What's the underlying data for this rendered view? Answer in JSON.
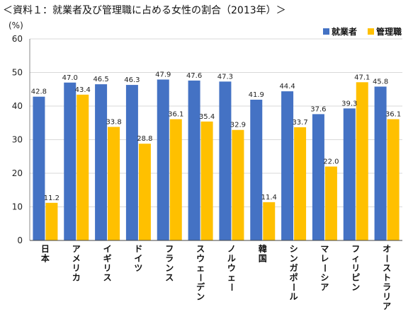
{
  "title": "＜資料１：就業者及び管理職に占める女性の割合（2013年）＞",
  "chart_data": {
    "type": "bar",
    "ylabel": "(%)",
    "ylim": [
      0,
      60
    ],
    "yticks": [
      0,
      10,
      20,
      30,
      40,
      50,
      60
    ],
    "grid": true,
    "legend": "top-right",
    "categories": [
      "日本",
      "アメリカ",
      "イギリス",
      "ドイツ",
      "フランス",
      "スウェーデン",
      "ノルウェー",
      "韓国",
      "シンガポール",
      "マレーシア",
      "フィリピン",
      "オーストラリア"
    ],
    "series": [
      {
        "name": "就業者",
        "color": "#4472c4",
        "values": [
          42.8,
          47.0,
          46.5,
          46.3,
          47.9,
          47.6,
          47.3,
          41.9,
          44.4,
          37.6,
          39.3,
          45.8
        ]
      },
      {
        "name": "管理職",
        "color": "#ffc000",
        "values": [
          11.2,
          43.4,
          33.8,
          28.8,
          36.1,
          35.4,
          32.9,
          11.4,
          33.7,
          22.0,
          47.1,
          36.1
        ]
      }
    ]
  }
}
